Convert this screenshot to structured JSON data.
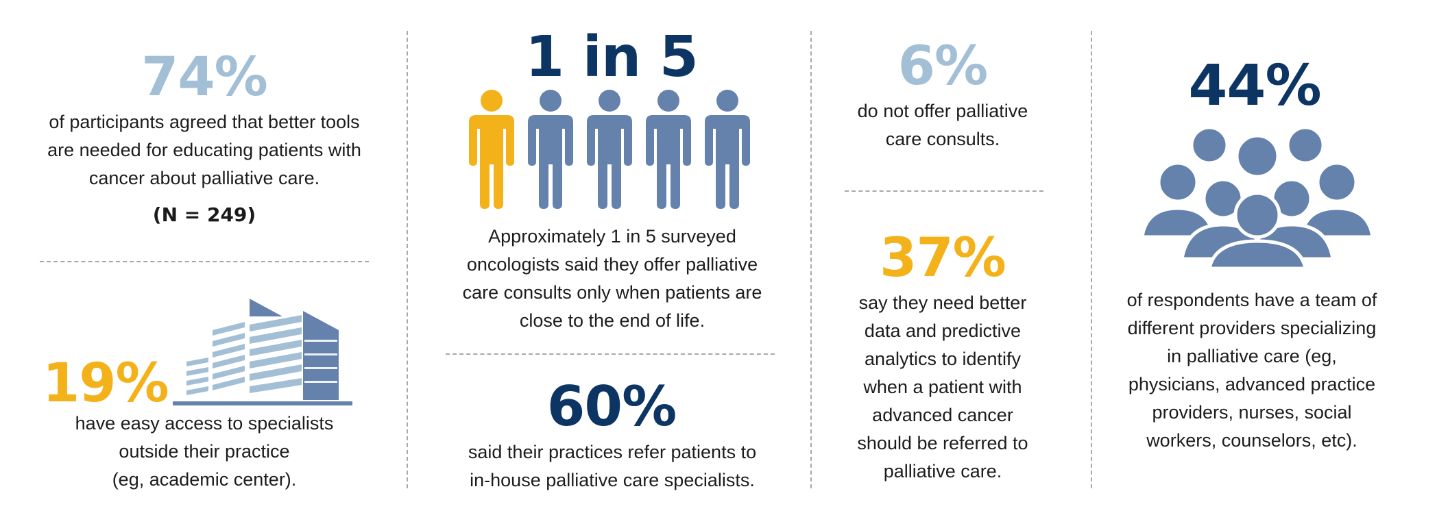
{
  "colors": {
    "light_blue": "#a3bfd6",
    "dark_navy": "#0d3564",
    "gold": "#f4b21a",
    "steel_blue": "#6482ac",
    "divider": "#a8a8a8"
  },
  "panel1": {
    "stat_top": "74%",
    "text_top": [
      "of participants agreed that better tools",
      "are needed for educating patients with",
      "cancer about palliative care."
    ],
    "sample_size": "(N = 249)",
    "stat_bottom": "19%",
    "text_bottom": [
      "have easy access to specialists",
      "outside their practice",
      "(eg, academic center)."
    ],
    "icon": "office-building-icon"
  },
  "panel2": {
    "stat_top": "1 in 5",
    "icon": "person-icon",
    "people_total": 5,
    "people_highlighted": 1,
    "text_top": [
      "Approximately 1 in 5 surveyed",
      "oncologists said they offer palliative",
      "care consults only when patients are",
      "close to the end of life."
    ],
    "stat_bottom": "60%",
    "text_bottom": [
      "said their practices refer patients to",
      "in-house palliative care specialists."
    ]
  },
  "panel3": {
    "stat_top": "6%",
    "text_top": [
      "do not offer palliative",
      "care consults."
    ],
    "stat_bottom": "37%",
    "text_bottom": [
      "say they need better",
      "data and predictive",
      "analytics to identify",
      "when a patient with",
      "advanced cancer",
      "should be referred to",
      "palliative care."
    ]
  },
  "panel4": {
    "stat": "44%",
    "icon": "group-of-people-icon",
    "text": [
      "of respondents have a team of",
      "different providers specializing",
      "in palliative care (eg,",
      "physicians, advanced practice",
      "providers, nurses, social",
      "workers, counselors, etc)."
    ]
  }
}
